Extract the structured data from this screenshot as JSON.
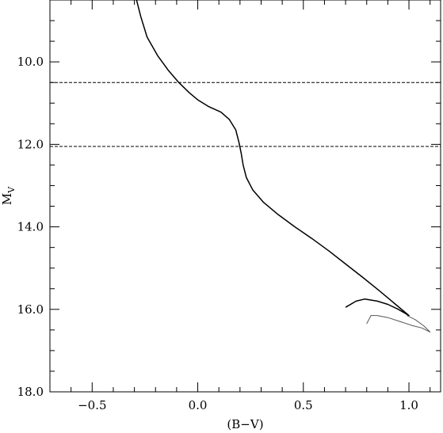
{
  "chart_data": {
    "type": "line",
    "xlabel": "(B−V)",
    "ylabel": "M",
    "ylabel_sub": "V",
    "xlim": [
      -0.7,
      1.15
    ],
    "ylim": [
      18.0,
      8.5
    ],
    "y_inverted": true,
    "xticks_major": [
      -0.5,
      0.0,
      0.5,
      1.0
    ],
    "xtick_labels": [
      "−0.5",
      "0.0",
      "0.5",
      "1.0"
    ],
    "yticks_major": [
      10.0,
      12.0,
      14.0,
      16.0,
      18.0
    ],
    "ytick_labels": [
      "10.0",
      "12.0",
      "14.0",
      "16.0",
      "18.0"
    ],
    "x_minor_step": 0.1,
    "y_minor_step": 0.5,
    "reference_lines_y": [
      10.5,
      12.05
    ],
    "series": [
      {
        "style": "solid",
        "color": "#000000",
        "x": [
          -0.29,
          -0.27,
          -0.24,
          -0.19,
          -0.14,
          -0.09,
          -0.04,
          0.0,
          0.05,
          0.11,
          0.15,
          0.18,
          0.195,
          0.205,
          0.215,
          0.23,
          0.26,
          0.31,
          0.38,
          0.46,
          0.54,
          0.62,
          0.7,
          0.78,
          0.86,
          0.93,
          1.0,
          0.95,
          0.9,
          0.85,
          0.79,
          0.75,
          0.7
        ],
        "y": [
          8.5,
          8.9,
          9.4,
          9.85,
          10.2,
          10.5,
          10.75,
          10.92,
          11.08,
          11.22,
          11.4,
          11.65,
          11.95,
          12.2,
          12.5,
          12.8,
          13.1,
          13.4,
          13.7,
          14.0,
          14.28,
          14.58,
          14.9,
          15.22,
          15.55,
          15.85,
          16.15,
          16.0,
          15.88,
          15.8,
          15.75,
          15.8,
          15.95
        ]
      },
      {
        "style": "thin",
        "color": "#555555",
        "x": [
          0.99,
          1.03,
          1.07,
          1.1,
          1.06,
          1.02,
          0.96,
          0.9,
          0.85,
          0.82,
          0.81,
          0.8
        ],
        "y": [
          16.15,
          16.25,
          16.4,
          16.55,
          16.45,
          16.4,
          16.3,
          16.2,
          16.15,
          16.15,
          16.25,
          16.35
        ]
      }
    ]
  }
}
